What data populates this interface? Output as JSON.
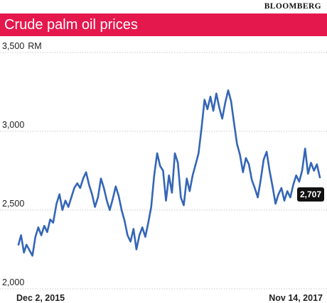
{
  "brand": "BLOOMBERG",
  "colors": {
    "banner": "#e5184e",
    "line": "#3466b6",
    "grid": "#c8c8c8",
    "label_bg": "#111111"
  },
  "chart_data": {
    "type": "line",
    "title": "Crude palm oil prices",
    "ylabel": "RM",
    "ylim": [
      2000,
      3500
    ],
    "yticks": [
      {
        "value": 3500,
        "label": "3,500"
      },
      {
        "value": 3000,
        "label": "3,000"
      },
      {
        "value": 2500,
        "label": "2,500"
      },
      {
        "value": 2000,
        "label": "2,000"
      }
    ],
    "xrange": [
      "2015-12-02",
      "2017-11-14"
    ],
    "xticks": [
      {
        "date": "2015-12-02",
        "label": "Dec 2, 2015"
      },
      {
        "date": "2017-11-14",
        "label": "Nov 14, 2017"
      }
    ],
    "end_value_label": "2,707",
    "series": [
      {
        "points": [
          [
            "2015-12-02",
            2280
          ],
          [
            "2015-12-08",
            2340
          ],
          [
            "2015-12-15",
            2230
          ],
          [
            "2015-12-21",
            2280
          ],
          [
            "2016-01-04",
            2210
          ],
          [
            "2016-01-11",
            2330
          ],
          [
            "2016-01-18",
            2390
          ],
          [
            "2016-01-25",
            2340
          ],
          [
            "2016-02-01",
            2400
          ],
          [
            "2016-02-08",
            2360
          ],
          [
            "2016-02-15",
            2440
          ],
          [
            "2016-02-22",
            2420
          ],
          [
            "2016-03-01",
            2540
          ],
          [
            "2016-03-08",
            2600
          ],
          [
            "2016-03-15",
            2500
          ],
          [
            "2016-03-22",
            2560
          ],
          [
            "2016-03-29",
            2520
          ],
          [
            "2016-04-05",
            2580
          ],
          [
            "2016-04-12",
            2640
          ],
          [
            "2016-04-19",
            2670
          ],
          [
            "2016-04-26",
            2640
          ],
          [
            "2016-05-03",
            2700
          ],
          [
            "2016-05-10",
            2740
          ],
          [
            "2016-05-17",
            2660
          ],
          [
            "2016-05-24",
            2600
          ],
          [
            "2016-05-31",
            2520
          ],
          [
            "2016-06-07",
            2580
          ],
          [
            "2016-06-14",
            2700
          ],
          [
            "2016-06-21",
            2640
          ],
          [
            "2016-06-28",
            2560
          ],
          [
            "2016-07-05",
            2500
          ],
          [
            "2016-07-12",
            2570
          ],
          [
            "2016-07-19",
            2650
          ],
          [
            "2016-07-26",
            2590
          ],
          [
            "2016-08-02",
            2500
          ],
          [
            "2016-08-09",
            2430
          ],
          [
            "2016-08-16",
            2340
          ],
          [
            "2016-08-23",
            2300
          ],
          [
            "2016-08-30",
            2380
          ],
          [
            "2016-09-06",
            2250
          ],
          [
            "2016-09-13",
            2340
          ],
          [
            "2016-09-20",
            2390
          ],
          [
            "2016-09-27",
            2330
          ],
          [
            "2016-10-04",
            2420
          ],
          [
            "2016-10-11",
            2520
          ],
          [
            "2016-10-18",
            2720
          ],
          [
            "2016-10-25",
            2860
          ],
          [
            "2016-11-01",
            2780
          ],
          [
            "2016-11-08",
            2750
          ],
          [
            "2016-11-15",
            2560
          ],
          [
            "2016-11-22",
            2720
          ],
          [
            "2016-11-29",
            2610
          ],
          [
            "2016-12-06",
            2860
          ],
          [
            "2016-12-13",
            2800
          ],
          [
            "2016-12-20",
            2580
          ],
          [
            "2016-12-27",
            2530
          ],
          [
            "2017-01-03",
            2700
          ],
          [
            "2017-01-10",
            2620
          ],
          [
            "2017-01-17",
            2720
          ],
          [
            "2017-01-24",
            2790
          ],
          [
            "2017-01-31",
            2860
          ],
          [
            "2017-02-07",
            3020
          ],
          [
            "2017-02-14",
            3200
          ],
          [
            "2017-02-21",
            3140
          ],
          [
            "2017-02-28",
            3220
          ],
          [
            "2017-03-07",
            3130
          ],
          [
            "2017-03-14",
            3240
          ],
          [
            "2017-03-21",
            3150
          ],
          [
            "2017-03-28",
            3080
          ],
          [
            "2017-04-04",
            3180
          ],
          [
            "2017-04-11",
            3260
          ],
          [
            "2017-04-18",
            3190
          ],
          [
            "2017-04-25",
            3050
          ],
          [
            "2017-05-02",
            2920
          ],
          [
            "2017-05-09",
            2850
          ],
          [
            "2017-05-16",
            2740
          ],
          [
            "2017-05-23",
            2830
          ],
          [
            "2017-05-30",
            2790
          ],
          [
            "2017-06-06",
            2690
          ],
          [
            "2017-06-13",
            2640
          ],
          [
            "2017-06-20",
            2580
          ],
          [
            "2017-06-27",
            2690
          ],
          [
            "2017-07-04",
            2820
          ],
          [
            "2017-07-11",
            2870
          ],
          [
            "2017-07-18",
            2750
          ],
          [
            "2017-07-25",
            2650
          ],
          [
            "2017-08-01",
            2540
          ],
          [
            "2017-08-08",
            2600
          ],
          [
            "2017-08-15",
            2640
          ],
          [
            "2017-08-22",
            2560
          ],
          [
            "2017-08-29",
            2620
          ],
          [
            "2017-09-05",
            2580
          ],
          [
            "2017-09-12",
            2660
          ],
          [
            "2017-09-19",
            2720
          ],
          [
            "2017-09-26",
            2680
          ],
          [
            "2017-10-03",
            2750
          ],
          [
            "2017-10-10",
            2890
          ],
          [
            "2017-10-17",
            2730
          ],
          [
            "2017-10-24",
            2800
          ],
          [
            "2017-10-31",
            2750
          ],
          [
            "2017-11-07",
            2790
          ],
          [
            "2017-11-14",
            2707
          ]
        ]
      }
    ]
  }
}
